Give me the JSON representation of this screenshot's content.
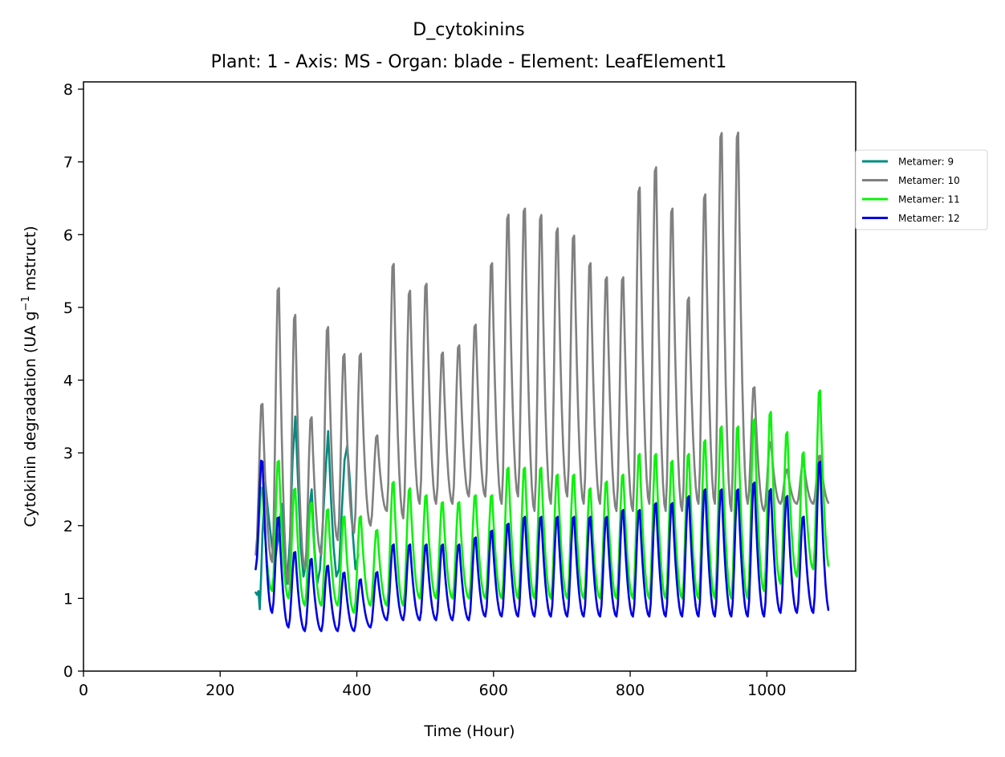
{
  "chart_data": {
    "type": "line",
    "title": "D_cytokinins",
    "subtitle": "Plant: 1 - Axis: MS - Organ: blade - Element: LeafElement1",
    "xlabel": "Time (Hour)",
    "ylabel_main": "Cytokinin degradation (UA g",
    "ylabel_sup": "−1",
    "ylabel_tail": " mstruct)",
    "xlim": [
      0,
      1130
    ],
    "ylim": [
      0,
      8.1
    ],
    "x_ticks": [
      0,
      200,
      400,
      600,
      800,
      1000
    ],
    "y_ticks": [
      0,
      1,
      2,
      3,
      4,
      5,
      6,
      7,
      8
    ],
    "grid": false,
    "legend_position": "right",
    "series": [
      {
        "name": "Metamer: 9",
        "color": "#008b80",
        "x": [
          252,
          254,
          256,
          258,
          260,
          262,
          266,
          270,
          276,
          280,
          286,
          290,
          294,
          298,
          302,
          306,
          310,
          314,
          318,
          322,
          326,
          330,
          334,
          338,
          342,
          346,
          350,
          354,
          358,
          362,
          366,
          370,
          374,
          378,
          382,
          386,
          390,
          394,
          398,
          402
        ],
        "values": [
          1.08,
          1.05,
          1.1,
          0.85,
          1.3,
          1.9,
          2.6,
          2.2,
          1.7,
          1.5,
          1.9,
          2.3,
          1.6,
          1.2,
          1.8,
          2.9,
          3.5,
          2.6,
          1.7,
          1.3,
          1.5,
          2.2,
          2.5,
          1.7,
          1.2,
          1.4,
          2.0,
          2.7,
          3.3,
          2.4,
          1.7,
          1.3,
          1.4,
          2.2,
          2.9,
          3.1,
          2.6,
          1.9,
          1.4,
          1.6
        ]
      },
      {
        "name": "Metamer: 10",
        "color": "#808080",
        "min": [
          1.6,
          1.5,
          1.2,
          1.4,
          1.6,
          1.8,
          1.9,
          2.0,
          2.2,
          2.1,
          2.3,
          2.3,
          2.3,
          2.4,
          2.4,
          2.3,
          2.4,
          2.2,
          2.3,
          2.4,
          2.3,
          2.3,
          2.2,
          2.2,
          2.3,
          2.2,
          2.2,
          2.3,
          2.3,
          2.2,
          2.3,
          2.2,
          2.3,
          2.3,
          2.3
        ],
        "peaks": [
          3.8,
          5.5,
          5.1,
          3.6,
          4.9,
          4.5,
          4.5,
          3.3,
          5.8,
          5.4,
          5.5,
          4.5,
          4.6,
          4.9,
          5.8,
          6.5,
          6.6,
          6.5,
          6.3,
          6.2,
          5.8,
          5.6,
          5.6,
          6.9,
          7.2,
          6.6,
          5.3,
          6.8,
          7.7,
          7.7,
          4.0,
          3.2,
          2.8,
          2.9,
          3.0
        ]
      },
      {
        "name": "Metamer: 11",
        "color": "#0cf20c",
        "min": [
          1.4,
          1.1,
          1.0,
          0.9,
          0.9,
          0.9,
          0.8,
          0.9,
          0.9,
          0.9,
          1.0,
          1.0,
          1.0,
          1.0,
          1.0,
          1.0,
          1.0,
          1.0,
          1.0,
          1.0,
          1.0,
          1.0,
          1.0,
          1.0,
          1.0,
          1.0,
          1.0,
          1.0,
          1.0,
          1.0,
          1.0,
          1.1,
          1.2,
          1.3,
          1.4
        ],
        "peaks": [
          2.6,
          3.0,
          2.6,
          2.4,
          2.3,
          2.2,
          2.2,
          2.0,
          2.7,
          2.6,
          2.5,
          2.4,
          2.4,
          2.5,
          2.5,
          2.9,
          2.9,
          2.9,
          2.8,
          2.8,
          2.6,
          2.7,
          2.8,
          3.1,
          3.1,
          3.0,
          3.1,
          3.3,
          3.5,
          3.5,
          3.6,
          3.7,
          3.4,
          3.1,
          4.0
        ]
      },
      {
        "name": "Metamer: 12",
        "color": "#0000e6",
        "min": [
          1.4,
          0.8,
          0.6,
          0.55,
          0.55,
          0.55,
          0.55,
          0.6,
          0.7,
          0.7,
          0.7,
          0.7,
          0.7,
          0.7,
          0.75,
          0.75,
          0.75,
          0.75,
          0.75,
          0.75,
          0.75,
          0.75,
          0.75,
          0.75,
          0.75,
          0.75,
          0.75,
          0.75,
          0.75,
          0.75,
          0.75,
          0.75,
          0.8,
          0.8,
          0.8
        ],
        "peaks": [
          3.0,
          2.2,
          1.7,
          1.6,
          1.5,
          1.4,
          1.3,
          1.4,
          1.8,
          1.8,
          1.8,
          1.8,
          1.8,
          1.9,
          2.0,
          2.1,
          2.2,
          2.2,
          2.2,
          2.2,
          2.2,
          2.2,
          2.3,
          2.3,
          2.4,
          2.4,
          2.5,
          2.6,
          2.6,
          2.6,
          2.7,
          2.6,
          2.5,
          2.2,
          3.0
        ]
      }
    ],
    "cycle": {
      "start": 252,
      "end": 1092,
      "period": 24
    }
  }
}
